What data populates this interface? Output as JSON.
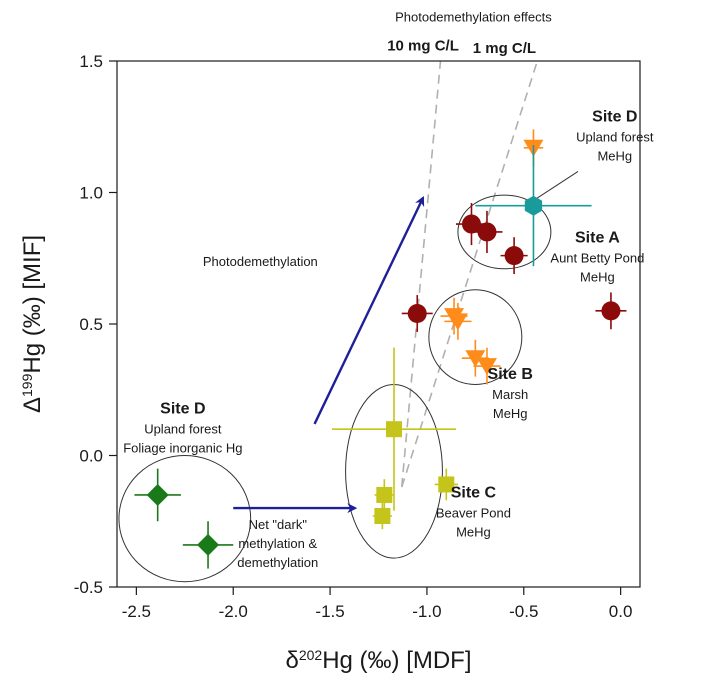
{
  "chart_data": {
    "type": "scatter",
    "title": "",
    "xlabel": {
      "prefix": "δ",
      "sup": "202",
      "rest": "Hg (‰) [MDF]"
    },
    "ylabel": {
      "prefix": "Δ",
      "sup": "199",
      "rest": "Hg (‰) [MIF]"
    },
    "xlim": [
      -2.6,
      0.1
    ],
    "ylim": [
      -0.5,
      1.5
    ],
    "xticks": [
      -2.5,
      -2.0,
      -1.5,
      -1.0,
      -0.5,
      0.0
    ],
    "xtick_labels": [
      "-2.5",
      "-2.0",
      "-1.5",
      "-1.0",
      "-0.5",
      "0.0"
    ],
    "yticks": [
      -0.5,
      0.0,
      0.5,
      1.0,
      1.5
    ],
    "ytick_labels": [
      "-0.5",
      "0.0",
      "0.5",
      "1.0",
      "1.5"
    ],
    "grid": false,
    "series": [
      {
        "marker": "diamond",
        "color": "#1a7a1a",
        "points": [
          {
            "x": -2.39,
            "y": -0.15,
            "xerr": 0.12,
            "yerr": 0.1
          },
          {
            "x": -2.13,
            "y": -0.34,
            "xerr": 0.13,
            "yerr": 0.09
          }
        ]
      },
      {
        "marker": "square",
        "color": "#c4c41a",
        "points": [
          {
            "x": -1.17,
            "y": 0.1,
            "xerr": 0.32,
            "yerr": 0.31
          },
          {
            "x": -1.22,
            "y": -0.15,
            "xerr": 0.05,
            "yerr": 0.06
          },
          {
            "x": -1.23,
            "y": -0.23,
            "xerr": 0.05,
            "yerr": 0.05
          },
          {
            "x": -0.9,
            "y": -0.11,
            "xerr": 0.06,
            "yerr": 0.06
          }
        ]
      },
      {
        "marker": "triangle-down",
        "color": "#ff8c1a",
        "points": [
          {
            "x": -0.86,
            "y": 0.53,
            "xerr": 0.07,
            "yerr": 0.07
          },
          {
            "x": -0.84,
            "y": 0.51,
            "xerr": 0.07,
            "yerr": 0.07
          },
          {
            "x": -0.75,
            "y": 0.37,
            "xerr": 0.07,
            "yerr": 0.07
          },
          {
            "x": -0.69,
            "y": 0.34,
            "xerr": 0.07,
            "yerr": 0.07
          },
          {
            "x": -0.45,
            "y": 1.17,
            "xerr": 0.05,
            "yerr": 0.07
          }
        ]
      },
      {
        "marker": "circle",
        "color": "#8b0a0a",
        "points": [
          {
            "x": -0.77,
            "y": 0.88,
            "xerr": 0.08,
            "yerr": 0.08
          },
          {
            "x": -0.69,
            "y": 0.85,
            "xerr": 0.08,
            "yerr": 0.08
          },
          {
            "x": -0.55,
            "y": 0.76,
            "xerr": 0.07,
            "yerr": 0.07
          },
          {
            "x": -1.05,
            "y": 0.54,
            "xerr": 0.08,
            "yerr": 0.07
          },
          {
            "x": -0.05,
            "y": 0.55,
            "xerr": 0.08,
            "yerr": 0.07
          }
        ]
      },
      {
        "marker": "hexagon",
        "color": "#1a9b9b",
        "points": [
          {
            "x": -0.45,
            "y": 0.95,
            "xerr": 0.3,
            "yerr": 0.23
          }
        ]
      }
    ],
    "ellipses": [
      {
        "cx": -2.25,
        "cy": -0.24,
        "rx": 0.34,
        "ry": 0.24
      },
      {
        "cx": -1.17,
        "cy": -0.06,
        "rx": 0.25,
        "ry": 0.33
      },
      {
        "cx": -0.75,
        "cy": 0.45,
        "rx": 0.24,
        "ry": 0.18
      },
      {
        "cx": -0.6,
        "cy": 0.85,
        "rx": 0.24,
        "ry": 0.14
      }
    ],
    "dashed_lines": [
      {
        "x1": -1.13,
        "y1": -0.12,
        "x2": -0.93,
        "y2": 1.5
      },
      {
        "x1": -1.13,
        "y1": -0.12,
        "x2": -0.43,
        "y2": 1.5
      }
    ],
    "arrows": [
      {
        "x1": -1.58,
        "y1": 0.12,
        "x2": -1.02,
        "y2": 0.98
      },
      {
        "x1": -2.0,
        "y1": -0.2,
        "x2": -1.37,
        "y2": -0.2
      }
    ],
    "connector": {
      "x1": -0.47,
      "y1": 0.96,
      "x2": -0.22,
      "y2": 1.08
    },
    "annotations": [
      {
        "lines": [
          "Photodemethylation effects"
        ],
        "x": -0.76,
        "y": 1.65,
        "bold": false,
        "anchor": "middle"
      },
      {
        "lines": [
          "10 mg C/L"
        ],
        "x": -1.02,
        "y": 1.54,
        "bold": true,
        "anchor": "middle"
      },
      {
        "lines": [
          "1 mg C/L"
        ],
        "x": -0.6,
        "y": 1.53,
        "bold": true,
        "anchor": "middle"
      },
      {
        "lines": [
          "Photodemethylation"
        ],
        "x": -1.86,
        "y": 0.72,
        "bold": false,
        "anchor": "middle"
      },
      {
        "title": "Site D",
        "lines": [
          "Upland forest",
          "MeHg"
        ],
        "x": -0.03,
        "y": 1.27,
        "bold": false,
        "anchor": "middle"
      },
      {
        "title": "Site A",
        "lines": [
          "Aunt Betty Pond",
          "MeHg"
        ],
        "x": -0.12,
        "y": 0.81,
        "bold": false,
        "anchor": "middle"
      },
      {
        "title": "Site B",
        "lines": [
          "Marsh",
          "MeHg"
        ],
        "x": -0.57,
        "y": 0.29,
        "bold": false,
        "anchor": "middle"
      },
      {
        "title": "Site C",
        "lines": [
          "Beaver Pond",
          "MeHg"
        ],
        "x": -0.76,
        "y": -0.16,
        "bold": false,
        "anchor": "middle"
      },
      {
        "title": "Site D",
        "lines": [
          "Upland forest",
          "Foliage inorganic Hg"
        ],
        "x": -2.26,
        "y": 0.16,
        "bold": false,
        "anchor": "middle"
      },
      {
        "lines": [
          "Net \"dark\"",
          "methylation &",
          "demethylation"
        ],
        "x": -1.77,
        "y": -0.28,
        "bold": false,
        "anchor": "middle"
      }
    ]
  }
}
